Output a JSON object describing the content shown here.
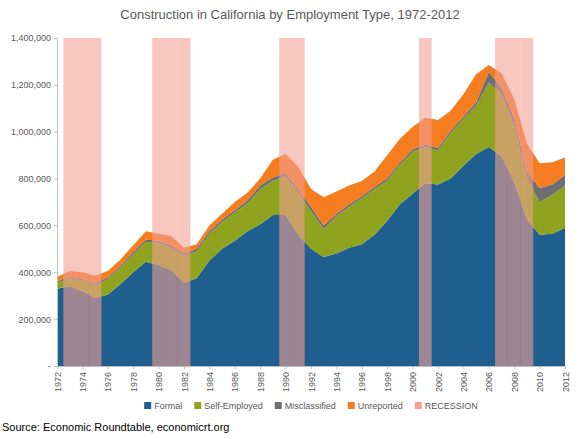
{
  "chart_data": {
    "type": "area",
    "title": "Construction in California by Employment Type, 1972-2012",
    "source": "Source: Economic Roundtable, economicrt.org",
    "stacked": true,
    "grid": false,
    "legend": "bottom",
    "x": [
      1972,
      1973,
      1974,
      1975,
      1976,
      1977,
      1978,
      1979,
      1980,
      1981,
      1982,
      1983,
      1984,
      1985,
      1986,
      1987,
      1988,
      1989,
      1990,
      1991,
      1992,
      1993,
      1994,
      1995,
      1996,
      1997,
      1998,
      1999,
      2000,
      2001,
      2002,
      2003,
      2004,
      2005,
      2006,
      2007,
      2008,
      2009,
      2010,
      2011,
      2012
    ],
    "xlim": [
      1972,
      2012
    ],
    "xticks": [
      1972,
      1974,
      1976,
      1978,
      1980,
      1982,
      1984,
      1986,
      1988,
      1990,
      1992,
      1994,
      1996,
      1998,
      2000,
      2002,
      2004,
      2006,
      2008,
      2010,
      2012
    ],
    "ylim": [
      0,
      1400000
    ],
    "yticks": [
      {
        "value": 0,
        "label": "-"
      },
      {
        "value": 200000,
        "label": "200,000"
      },
      {
        "value": 400000,
        "label": "400,000"
      },
      {
        "value": 600000,
        "label": "600,000"
      },
      {
        "value": 800000,
        "label": "800,000"
      },
      {
        "value": 1000000,
        "label": "1,000,000"
      },
      {
        "value": 1200000,
        "label": "1,200,000"
      },
      {
        "value": 1400000,
        "label": "1,400,000"
      }
    ],
    "series": [
      {
        "name": "Formal",
        "type": "area",
        "color": "#1f5f8f",
        "values": [
          330000,
          340000,
          320000,
          290000,
          305000,
          350000,
          400000,
          445000,
          430000,
          410000,
          355000,
          375000,
          450000,
          500000,
          535000,
          575000,
          605000,
          645000,
          645000,
          560000,
          500000,
          465000,
          480000,
          505000,
          520000,
          560000,
          620000,
          690000,
          735000,
          780000,
          775000,
          800000,
          855000,
          905000,
          935000,
          895000,
          785000,
          625000,
          560000,
          565000,
          590000
        ]
      },
      {
        "name": "Self-Employed",
        "type": "area",
        "color": "#8fa31f",
        "values": [
          25000,
          35000,
          45000,
          55000,
          65000,
          70000,
          75000,
          85000,
          95000,
          95000,
          115000,
          115000,
          115000,
          115000,
          120000,
          120000,
          150000,
          145000,
          165000,
          180000,
          160000,
          120000,
          160000,
          175000,
          195000,
          195000,
          170000,
          170000,
          180000,
          155000,
          145000,
          195000,
          200000,
          205000,
          275000,
          265000,
          240000,
          175000,
          140000,
          165000,
          180000
        ]
      },
      {
        "name": "Misclassified",
        "type": "area",
        "color": "#6d6f72",
        "values": [
          7000,
          7000,
          7000,
          7000,
          8000,
          8000,
          10000,
          10000,
          10000,
          10000,
          10000,
          10000,
          10000,
          10000,
          10000,
          12000,
          15000,
          15000,
          15000,
          15000,
          20000,
          15000,
          10000,
          10000,
          10000,
          10000,
          10000,
          10000,
          10000,
          10000,
          10000,
          10000,
          10000,
          15000,
          45000,
          30000,
          35000,
          30000,
          60000,
          45000,
          45000
        ]
      },
      {
        "name": "Unreported",
        "type": "area",
        "color": "#f57c1f",
        "values": [
          18000,
          23000,
          28000,
          33000,
          27000,
          27000,
          30000,
          35000,
          30000,
          40000,
          25000,
          20000,
          25000,
          25000,
          35000,
          33000,
          30000,
          75000,
          80000,
          95000,
          75000,
          120000,
          95000,
          80000,
          65000,
          65000,
          100000,
          100000,
          95000,
          115000,
          120000,
          85000,
          95000,
          120000,
          30000,
          60000,
          80000,
          120000,
          105000,
          95000,
          75000
        ]
      },
      {
        "name": "RECESSION",
        "type": "bar",
        "color": "#f2a093",
        "values": [
          null,
          1400000,
          1400000,
          1400000,
          null,
          null,
          null,
          null,
          1400000,
          1400000,
          1400000,
          null,
          null,
          null,
          null,
          null,
          null,
          null,
          1400000,
          1400000,
          null,
          null,
          null,
          null,
          null,
          null,
          null,
          null,
          null,
          1400000,
          null,
          null,
          null,
          null,
          null,
          1400000,
          1400000,
          1400000,
          null,
          null,
          null
        ]
      }
    ]
  }
}
